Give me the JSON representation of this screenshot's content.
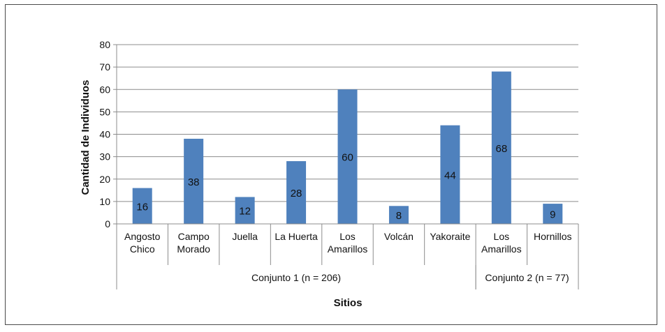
{
  "chart_data": {
    "type": "bar",
    "title": "",
    "xlabel": "Sitios",
    "ylabel": "Cantidad de Individuos",
    "ylim": [
      0,
      80
    ],
    "yticks": [
      0,
      10,
      20,
      30,
      40,
      50,
      60,
      70,
      80
    ],
    "grid": true,
    "bar_color": "#4F81BD",
    "categories": [
      [
        "Angosto",
        "Chico"
      ],
      [
        "Campo",
        "Morado"
      ],
      [
        "Juella"
      ],
      [
        "La Huerta"
      ],
      [
        "Los",
        "Amarillos"
      ],
      [
        "Volcán"
      ],
      [
        "Yakoraite"
      ],
      [
        "Los",
        "Amarillos"
      ],
      [
        "Hornillos"
      ]
    ],
    "values": [
      16,
      38,
      12,
      28,
      60,
      8,
      44,
      68,
      9
    ],
    "groups": [
      {
        "label": "Conjunto 1 (n = 206)",
        "start": 0,
        "end": 6
      },
      {
        "label": "Conjunto 2 (n = 77)",
        "start": 7,
        "end": 8
      }
    ]
  }
}
